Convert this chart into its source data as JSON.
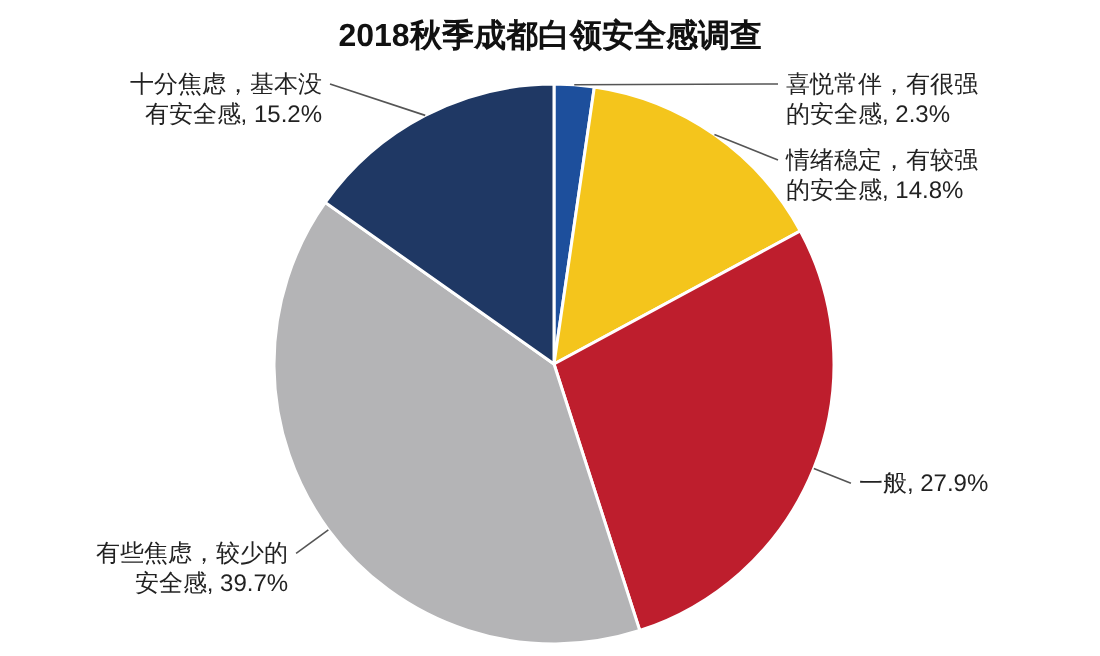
{
  "chart_data": {
    "type": "pie",
    "title": "2018秋季成都白领安全感调查",
    "categories": [
      "喜悦常伴，有很强的安全感",
      "情绪稳定，有较强的安全感",
      "一般",
      "有些焦虑，较少的安全感",
      "十分焦虑，基本没有安全感"
    ],
    "values": [
      2.3,
      14.8,
      27.9,
      39.7,
      15.2
    ],
    "value_labels": [
      "2.3%",
      "14.8%",
      "27.9%",
      "39.7%",
      "15.2%"
    ],
    "colors": [
      "#1d4f9c",
      "#f4c51c",
      "#be1e2d",
      "#b4b4b6",
      "#1f3864"
    ]
  }
}
